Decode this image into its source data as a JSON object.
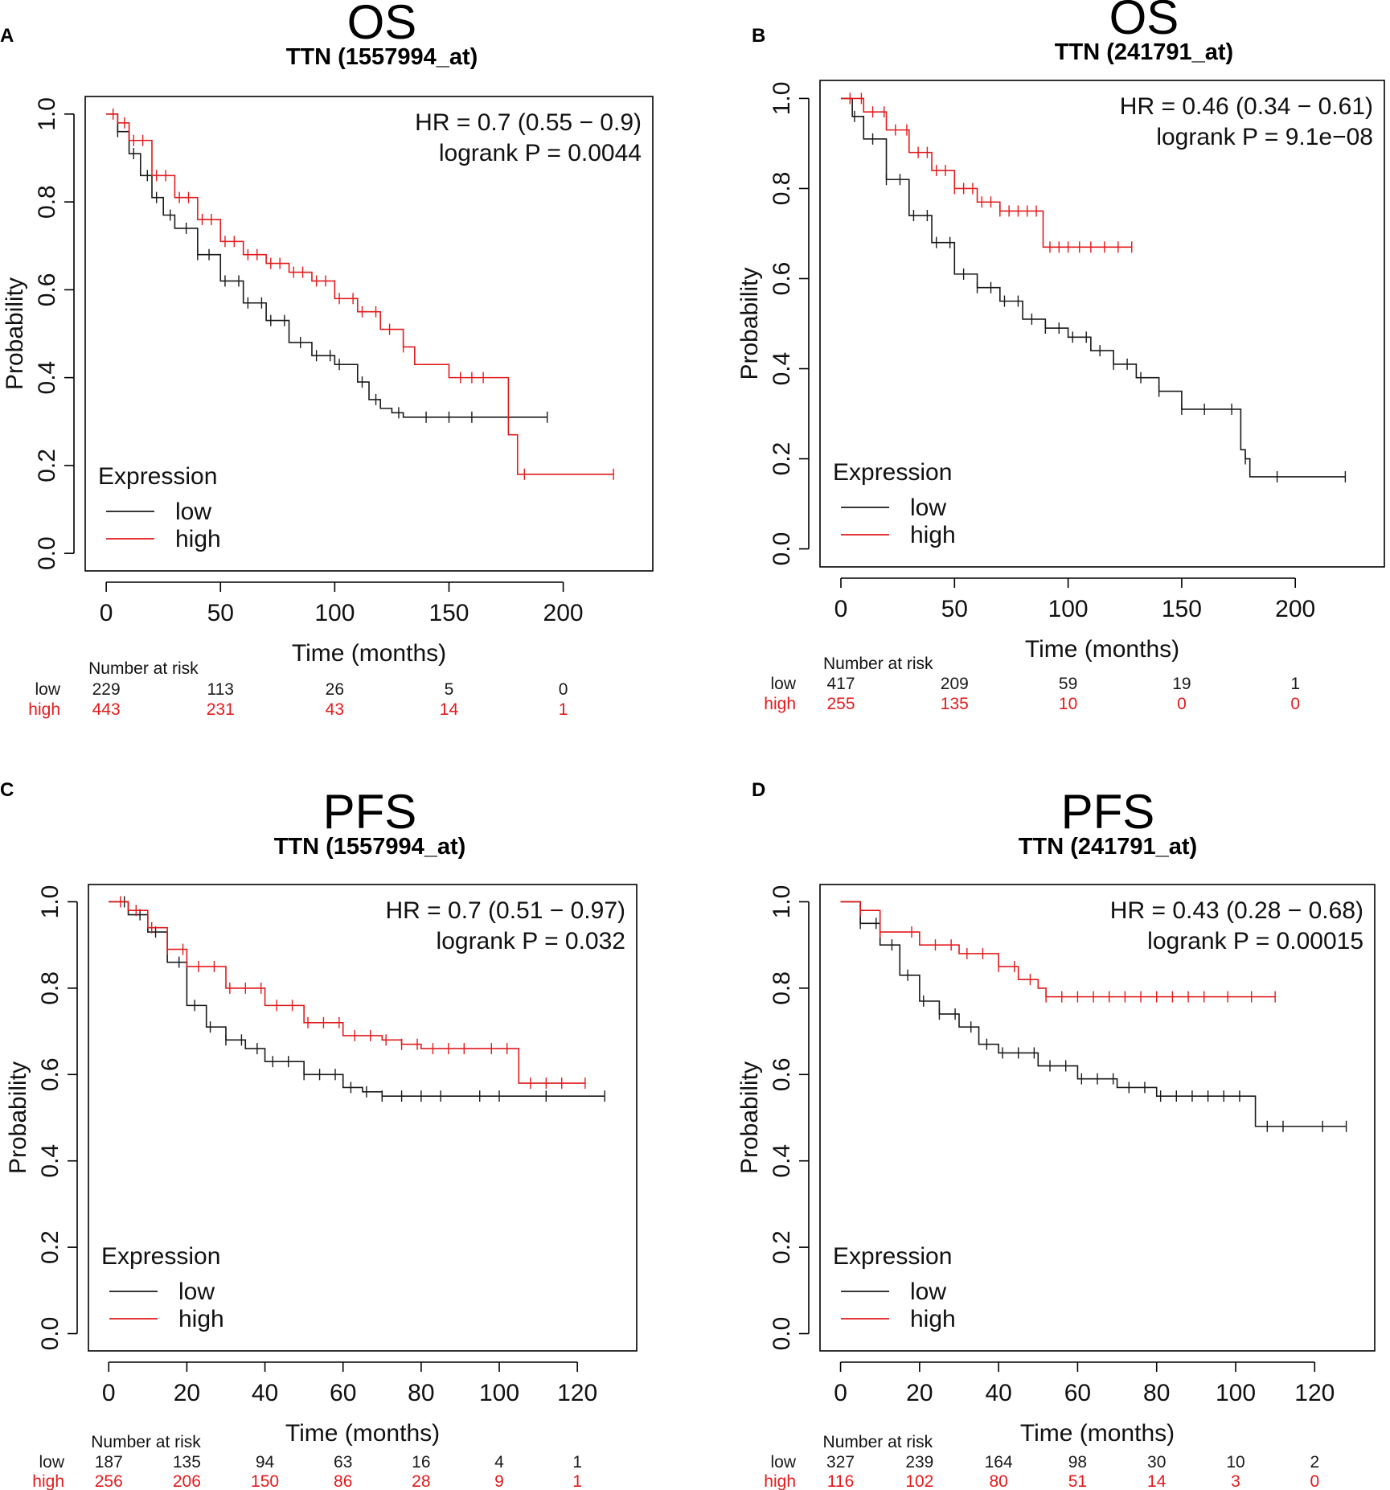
{
  "colors": {
    "low": "#1a1a1a",
    "high": "#e31a1c"
  },
  "chart_data": [
    {
      "panel": "A",
      "type": "line",
      "title": "OS",
      "subtitle": "TTN (1557994_at)",
      "xlabel": "Time (months)",
      "ylabel": "Probability",
      "xlim": [
        0,
        230
      ],
      "ylim": [
        0,
        1
      ],
      "xticks": [
        0,
        50,
        100,
        150,
        200
      ],
      "yticks": [
        0.0,
        0.2,
        0.4,
        0.6,
        0.8,
        1.0
      ],
      "stats": {
        "hr": "HR = 0.7 (0.55 − 0.9)",
        "logrank": "logrank P = 0.0044"
      },
      "legend": {
        "title": "Expression",
        "labels": [
          "low",
          "high"
        ],
        "position": "bottom-left"
      },
      "series": [
        {
          "name": "low",
          "color": "#1a1a1a",
          "x": [
            0,
            5,
            10,
            15,
            20,
            25,
            30,
            40,
            50,
            60,
            70,
            80,
            90,
            100,
            110,
            115,
            120,
            125,
            130,
            150,
            175,
            193
          ],
          "y": [
            1.0,
            0.96,
            0.91,
            0.86,
            0.81,
            0.77,
            0.74,
            0.68,
            0.62,
            0.57,
            0.53,
            0.48,
            0.45,
            0.43,
            0.39,
            0.35,
            0.33,
            0.32,
            0.31,
            0.31,
            0.31,
            0.31
          ],
          "censor_x": [
            5,
            12,
            18,
            22,
            28,
            35,
            40,
            45,
            52,
            58,
            62,
            68,
            72,
            78,
            85,
            92,
            98,
            102,
            112,
            118,
            128,
            140,
            150,
            160,
            193
          ]
        },
        {
          "name": "high",
          "color": "#e31a1c",
          "x": [
            0,
            5,
            10,
            20,
            30,
            40,
            50,
            60,
            70,
            80,
            90,
            100,
            110,
            120,
            130,
            135,
            150,
            165,
            174,
            176,
            180,
            222
          ],
          "y": [
            1.0,
            0.98,
            0.94,
            0.86,
            0.81,
            0.76,
            0.71,
            0.68,
            0.66,
            0.64,
            0.62,
            0.58,
            0.55,
            0.51,
            0.47,
            0.43,
            0.4,
            0.4,
            0.4,
            0.27,
            0.18,
            0.18
          ],
          "censor_x": [
            3,
            8,
            12,
            16,
            22,
            26,
            32,
            36,
            42,
            46,
            52,
            56,
            62,
            66,
            72,
            76,
            82,
            86,
            92,
            96,
            102,
            108,
            112,
            118,
            124,
            130,
            155,
            160,
            165,
            183,
            222
          ]
        }
      ],
      "risk_table": {
        "header": "Number at risk",
        "times": [
          0,
          50,
          100,
          150,
          200
        ],
        "rows": [
          {
            "label": "low",
            "counts": [
              "229",
              "113",
              "26",
              "5",
              "0"
            ]
          },
          {
            "label": "high",
            "counts": [
              "443",
              "231",
              "43",
              "14",
              "1"
            ]
          }
        ]
      }
    },
    {
      "panel": "B",
      "type": "line",
      "title": "OS",
      "subtitle": "TTN (241791_at)",
      "xlabel": "Time (months)",
      "ylabel": "Probability",
      "xlim": [
        0,
        230
      ],
      "ylim": [
        0,
        1
      ],
      "xticks": [
        0,
        50,
        100,
        150,
        200
      ],
      "yticks": [
        0.0,
        0.2,
        0.4,
        0.6,
        0.8,
        1.0
      ],
      "stats": {
        "hr": "HR = 0.46 (0.34 − 0.61)",
        "logrank": "logrank P = 9.1e−08"
      },
      "legend": {
        "title": "Expression",
        "labels": [
          "low",
          "high"
        ],
        "position": "bottom-left"
      },
      "series": [
        {
          "name": "low",
          "color": "#1a1a1a",
          "x": [
            0,
            5,
            10,
            20,
            30,
            40,
            50,
            60,
            70,
            80,
            90,
            100,
            110,
            120,
            130,
            140,
            150,
            160,
            174,
            176,
            178,
            180,
            222
          ],
          "y": [
            1.0,
            0.96,
            0.91,
            0.82,
            0.74,
            0.68,
            0.61,
            0.58,
            0.55,
            0.51,
            0.49,
            0.47,
            0.44,
            0.41,
            0.38,
            0.35,
            0.31,
            0.31,
            0.31,
            0.22,
            0.2,
            0.16,
            0.16
          ],
          "censor_x": [
            6,
            14,
            20,
            26,
            32,
            38,
            42,
            48,
            54,
            60,
            66,
            72,
            78,
            84,
            90,
            96,
            102,
            108,
            114,
            120,
            126,
            132,
            140,
            150,
            160,
            172,
            178,
            192,
            222
          ]
        },
        {
          "name": "high",
          "color": "#e31a1c",
          "x": [
            0,
            10,
            20,
            30,
            40,
            50,
            60,
            70,
            88,
            89,
            128
          ],
          "y": [
            1.0,
            0.97,
            0.93,
            0.88,
            0.84,
            0.8,
            0.77,
            0.75,
            0.75,
            0.67,
            0.67
          ],
          "censor_x": [
            4,
            9,
            14,
            19,
            24,
            29,
            34,
            38,
            42,
            46,
            50,
            54,
            58,
            62,
            66,
            70,
            74,
            78,
            82,
            86,
            92,
            96,
            100,
            105,
            110,
            116,
            122,
            128
          ]
        }
      ],
      "risk_table": {
        "header": "Number at risk",
        "times": [
          0,
          50,
          100,
          150,
          200
        ],
        "rows": [
          {
            "label": "low",
            "counts": [
              "417",
              "209",
              "59",
              "19",
              "1"
            ]
          },
          {
            "label": "high",
            "counts": [
              "255",
              "135",
              "10",
              "0",
              "0"
            ]
          }
        ]
      }
    },
    {
      "panel": "C",
      "type": "line",
      "title": "PFS",
      "subtitle": "TTN (1557994_at)",
      "xlabel": "Time (months)",
      "ylabel": "Probability",
      "xlim": [
        0,
        130
      ],
      "ylim": [
        0,
        1
      ],
      "xticks": [
        0,
        20,
        40,
        60,
        80,
        100,
        120
      ],
      "yticks": [
        0.0,
        0.2,
        0.4,
        0.6,
        0.8,
        1.0
      ],
      "stats": {
        "hr": "HR = 0.7 (0.51 − 0.97)",
        "logrank": "logrank P = 0.032"
      },
      "legend": {
        "title": "Expression",
        "labels": [
          "low",
          "high"
        ],
        "position": "bottom-left"
      },
      "series": [
        {
          "name": "low",
          "color": "#1a1a1a",
          "x": [
            0,
            5,
            10,
            15,
            20,
            25,
            30,
            35,
            40,
            50,
            60,
            65,
            70,
            127
          ],
          "y": [
            1.0,
            0.97,
            0.93,
            0.86,
            0.76,
            0.71,
            0.68,
            0.66,
            0.63,
            0.6,
            0.57,
            0.56,
            0.55,
            0.55
          ],
          "censor_x": [
            4,
            8,
            12,
            18,
            22,
            26,
            30,
            34,
            38,
            42,
            46,
            50,
            54,
            58,
            62,
            66,
            70,
            75,
            80,
            85,
            95,
            100,
            112,
            127
          ]
        },
        {
          "name": "high",
          "color": "#e31a1c",
          "x": [
            0,
            5,
            10,
            15,
            20,
            30,
            40,
            50,
            60,
            70,
            75,
            80,
            104,
            105,
            122
          ],
          "y": [
            1.0,
            0.98,
            0.94,
            0.89,
            0.85,
            0.8,
            0.76,
            0.72,
            0.69,
            0.68,
            0.67,
            0.66,
            0.66,
            0.58,
            0.58
          ],
          "censor_x": [
            3,
            7,
            11,
            15,
            19,
            23,
            27,
            31,
            35,
            39,
            43,
            47,
            51,
            55,
            59,
            63,
            67,
            71,
            75,
            79,
            83,
            87,
            91,
            98,
            102,
            108,
            112,
            116,
            122
          ]
        }
      ],
      "risk_table": {
        "header": "Number at risk",
        "times": [
          0,
          20,
          40,
          60,
          80,
          100,
          120
        ],
        "rows": [
          {
            "label": "low",
            "counts": [
              "187",
              "135",
              "94",
              "63",
              "16",
              "4",
              "1"
            ]
          },
          {
            "label": "high",
            "counts": [
              "256",
              "206",
              "150",
              "86",
              "28",
              "9",
              "1"
            ]
          }
        ]
      }
    },
    {
      "panel": "D",
      "type": "line",
      "title": "PFS",
      "subtitle": "TTN (241791_at)",
      "xlabel": "Time (months)",
      "ylabel": "Probability",
      "xlim": [
        0,
        130
      ],
      "ylim": [
        0,
        1
      ],
      "xticks": [
        0,
        20,
        40,
        60,
        80,
        100,
        120
      ],
      "yticks": [
        0.0,
        0.2,
        0.4,
        0.6,
        0.8,
        1.0
      ],
      "stats": {
        "hr": "HR = 0.43 (0.28 − 0.68)",
        "logrank": "logrank P = 0.00015"
      },
      "legend": {
        "title": "Expression",
        "labels": [
          "low",
          "high"
        ],
        "position": "bottom-left"
      },
      "series": [
        {
          "name": "low",
          "color": "#1a1a1a",
          "x": [
            0,
            5,
            10,
            15,
            20,
            25,
            30,
            35,
            40,
            50,
            60,
            70,
            80,
            90,
            104,
            105,
            128
          ],
          "y": [
            1.0,
            0.95,
            0.9,
            0.83,
            0.77,
            0.74,
            0.71,
            0.67,
            0.65,
            0.62,
            0.59,
            0.57,
            0.55,
            0.55,
            0.55,
            0.48,
            0.48
          ],
          "censor_x": [
            5,
            9,
            13,
            17,
            21,
            25,
            29,
            33,
            37,
            41,
            45,
            49,
            53,
            57,
            61,
            65,
            69,
            73,
            77,
            81,
            85,
            89,
            93,
            97,
            101,
            108,
            112,
            122,
            128
          ]
        },
        {
          "name": "high",
          "color": "#e31a1c",
          "x": [
            0,
            5,
            10,
            20,
            30,
            40,
            45,
            50,
            52,
            110
          ],
          "y": [
            1.0,
            0.98,
            0.93,
            0.9,
            0.88,
            0.85,
            0.82,
            0.8,
            0.78,
            0.78
          ],
          "censor_x": [
            5,
            10,
            18,
            24,
            28,
            32,
            36,
            40,
            44,
            48,
            52,
            56,
            60,
            64,
            68,
            72,
            76,
            80,
            84,
            88,
            92,
            98,
            104,
            110
          ]
        }
      ],
      "risk_table": {
        "header": "Number at risk",
        "times": [
          0,
          20,
          40,
          60,
          80,
          100,
          120
        ],
        "rows": [
          {
            "label": "low",
            "counts": [
              "327",
              "239",
              "164",
              "98",
              "30",
              "10",
              "2"
            ]
          },
          {
            "label": "high",
            "counts": [
              "116",
              "102",
              "80",
              "51",
              "14",
              "3",
              "0"
            ]
          }
        ]
      }
    }
  ]
}
